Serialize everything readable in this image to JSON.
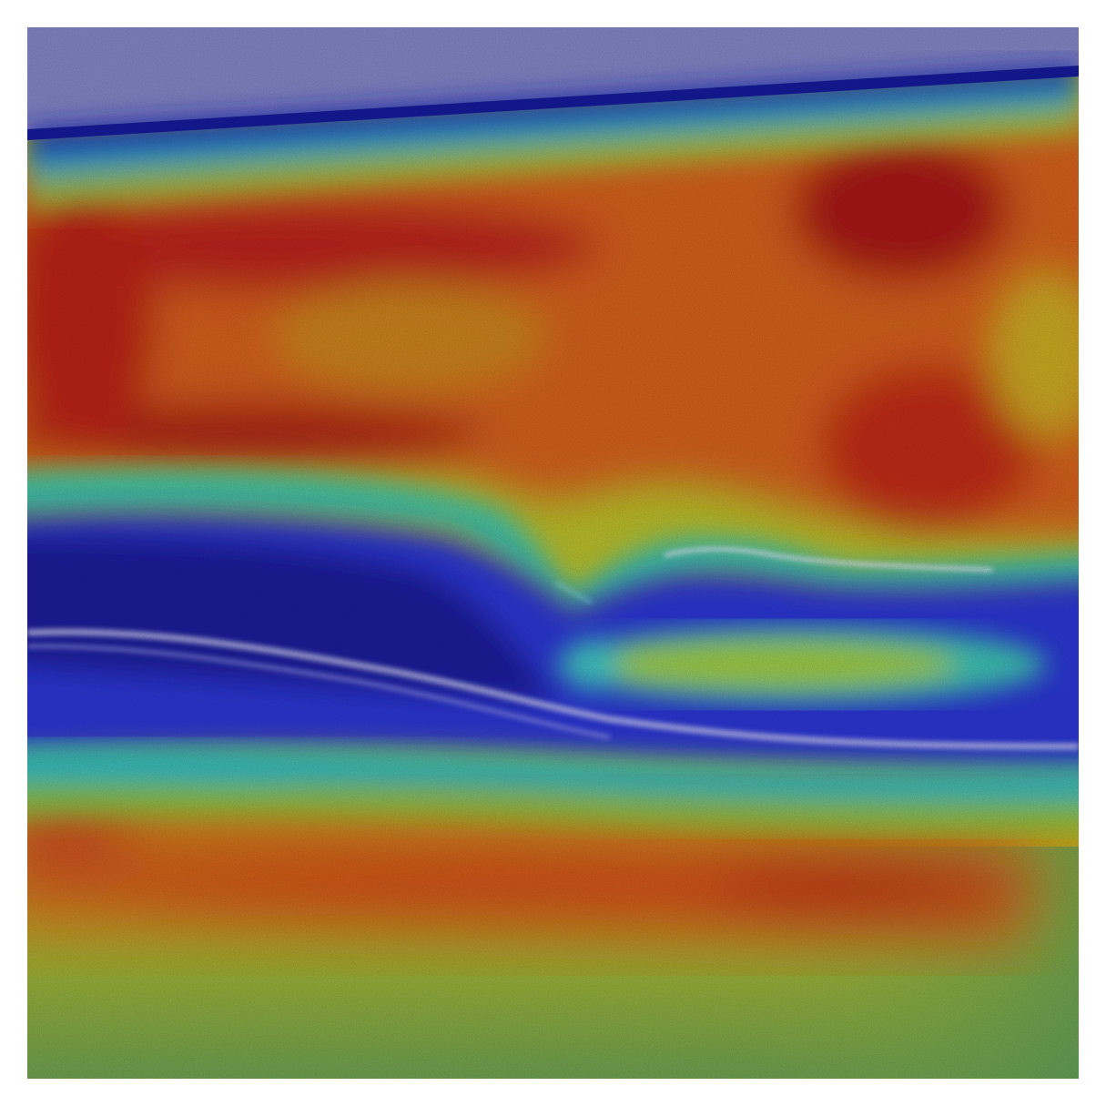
{
  "figure": {
    "kind": "oct-heatmap-overlay",
    "colormap": "jet",
    "colors": {
      "sky": "#8284c4",
      "deep_blue": "#1c1ca8",
      "blue": "#2c36d4",
      "cyan": "#1fc8c8",
      "green": "#58c048",
      "yellow": "#c8c41c",
      "orange": "#d8641c",
      "red": "#c22414",
      "dark_red": "#8c1410",
      "retina_highlight": "#d8d8f0",
      "bottom_green": "#6c9e50"
    }
  }
}
